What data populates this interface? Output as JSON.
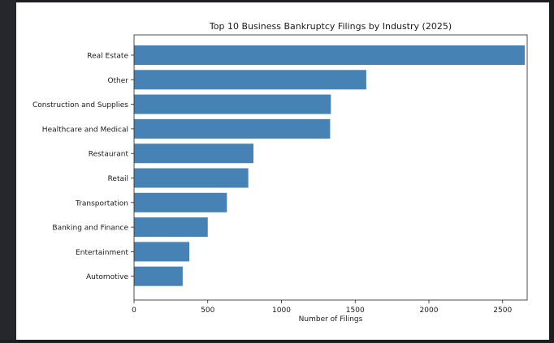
{
  "chart_data": {
    "type": "bar",
    "orientation": "horizontal",
    "title": "Top 10 Business Bankruptcy Filings by Industry (2025)",
    "xlabel": "Number of Filings",
    "ylabel": "",
    "xlim": [
      0,
      2800
    ],
    "xticks": [
      "0",
      "500",
      "1000",
      "1500",
      "2000",
      "2500"
    ],
    "categories": [
      "Real Estate",
      "Other",
      "Construction and Supplies",
      "Healthcare and Medical",
      "Restaurant",
      "Retail",
      "Transportation",
      "Banking and Finance",
      "Entertainment",
      "Automotive"
    ],
    "values": [
      2650,
      1575,
      1335,
      1330,
      810,
      775,
      630,
      500,
      375,
      330
    ],
    "bar_color": "#4682b4",
    "grid": false
  }
}
